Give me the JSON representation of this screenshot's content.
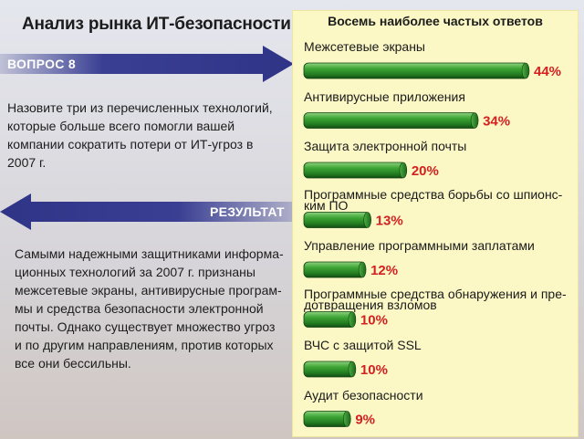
{
  "header": {
    "title": "Анализ рынка ИТ-безопасности"
  },
  "question": {
    "label": "ВОПРОС 8",
    "lines": [
      "Назовите три из перечисленных технологий,",
      "которые больше всего помогли вашей",
      "компании сократить потери от ИТ-угроз в",
      "2007 г."
    ]
  },
  "result": {
    "label": "РЕЗУЛЬТАТ",
    "lines": [
      "Самыми надежными защитниками информа-",
      "ционных технологий за 2007 г. признаны",
      "межсетевые экраны, антивирусные програм-",
      "мы и средства безопасности электронной",
      "почты. Однако существует множество угроз",
      "и по другим направлениям, против которых",
      "все они бессильны."
    ]
  },
  "colors": {
    "arrow": "#3a3f93",
    "bar": "#2e8a2a",
    "value_label": "#d42020",
    "panel": "#fbf8c6"
  },
  "chart_data": {
    "type": "bar",
    "title": "Восемь  наиболее частых ответов",
    "unit": "%",
    "categories": [
      [
        "Межсетевые экраны"
      ],
      [
        "Антивирусные приложения"
      ],
      [
        "Защита электронной почты"
      ],
      [
        "Программные средства борьбы со шпионс-",
        "ким ПО"
      ],
      [
        "Управление программными заплатами"
      ],
      [
        "Программные средства обнаружения и пре-",
        "дотвращения взломов"
      ],
      [
        "ВЧС с защитой SSL"
      ],
      [
        "Аудит безопасности"
      ]
    ],
    "values": [
      44,
      34,
      20,
      13,
      12,
      10,
      10,
      9
    ],
    "labels": [
      "44%",
      "34%",
      "20%",
      "13%",
      "12%",
      "10%",
      "10%",
      "9%"
    ]
  }
}
